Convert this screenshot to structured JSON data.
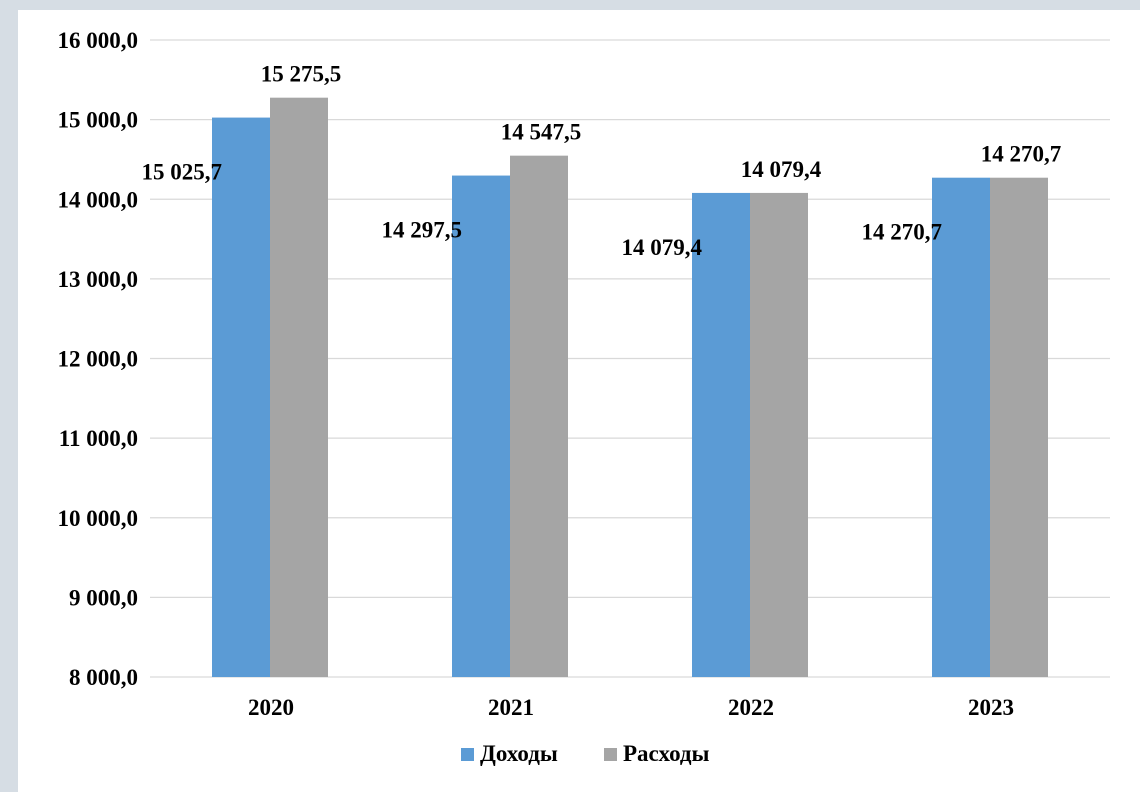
{
  "chart_data": {
    "type": "bar",
    "categories": [
      "2020",
      "2021",
      "2022",
      "2023"
    ],
    "series": [
      {
        "name": "Доходы",
        "color": "#5b9bd5",
        "values": [
          15025.7,
          14297.5,
          14079.4,
          14270.7
        ],
        "labels": [
          "15 025,7",
          "14 297,5",
          "14 079,4",
          "14 270,7"
        ]
      },
      {
        "name": "Расходы",
        "color": "#a5a5a5",
        "values": [
          15275.5,
          14547.5,
          14079.4,
          14270.7
        ],
        "labels": [
          "15 275,5",
          "14 547,5",
          "14 079,4",
          "14 270,7"
        ]
      }
    ],
    "ylim": [
      8000,
      16000
    ],
    "yticks": [
      {
        "value": 8000,
        "label": "8 000,0"
      },
      {
        "value": 9000,
        "label": "9 000,0"
      },
      {
        "value": 10000,
        "label": "10 000,0"
      },
      {
        "value": 11000,
        "label": "11 000,0"
      },
      {
        "value": 12000,
        "label": "12 000,0"
      },
      {
        "value": 13000,
        "label": "13 000,0"
      },
      {
        "value": 14000,
        "label": "14 000,0"
      },
      {
        "value": 15000,
        "label": "15 000,0"
      },
      {
        "value": 16000,
        "label": "16 000,0"
      }
    ],
    "grid": true,
    "legend_position": "bottom",
    "gridline_color": "#d9d9d9"
  }
}
